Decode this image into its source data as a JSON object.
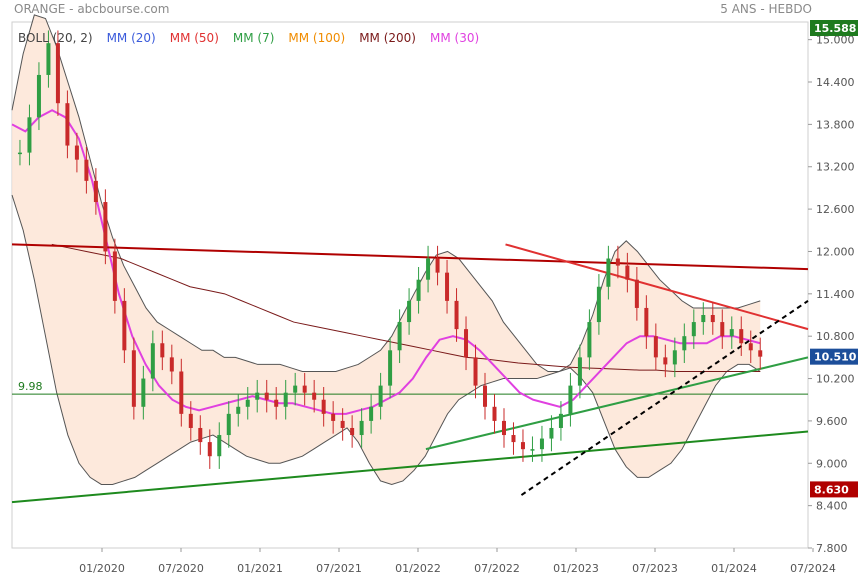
{
  "header": {
    "source": "ORANGE - abcbourse.com",
    "period": "5 ANS - HEBDO"
  },
  "legend": [
    {
      "label": "BOLL (20, 2)",
      "color": "#444444"
    },
    {
      "label": "MM (20)",
      "color": "#3b5bdb"
    },
    {
      "label": "MM (50)",
      "color": "#e03131"
    },
    {
      "label": "MM (7)",
      "color": "#2f9e44"
    },
    {
      "label": "MM (100)",
      "color": "#f08c00"
    },
    {
      "label": "MM (200)",
      "color": "#7a1a1a"
    },
    {
      "label": "MM (30)",
      "color": "#e040e0"
    }
  ],
  "chart_data": {
    "type": "candlestick",
    "x_ticks": [
      "01/2020",
      "07/2020",
      "01/2021",
      "07/2021",
      "01/2022",
      "07/2022",
      "01/2023",
      "07/2023",
      "01/2024",
      "07/2024"
    ],
    "y_ticks": [
      "7.800",
      "8.400",
      "9.000",
      "9.600",
      "10.200",
      "10.800",
      "11.400",
      "12.000",
      "12.600",
      "13.200",
      "13.800",
      "14.400",
      "15.000"
    ],
    "ylim": [
      7.8,
      15.25
    ],
    "top_badge": "15.588",
    "last_price": "10.510",
    "low_marker": "8.630",
    "horizontal_line_label": "9.98",
    "horizontal_line_value": 9.98,
    "close_series": [
      13.4,
      13.9,
      14.5,
      14.95,
      14.1,
      13.5,
      13.3,
      13.0,
      12.7,
      12.0,
      11.3,
      10.6,
      9.8,
      10.2,
      10.7,
      10.5,
      10.3,
      9.7,
      9.5,
      9.3,
      9.1,
      9.4,
      9.7,
      9.8,
      9.9,
      10.0,
      9.9,
      9.8,
      10.0,
      10.1,
      10.0,
      9.9,
      9.7,
      9.6,
      9.5,
      9.4,
      9.6,
      9.8,
      10.1,
      10.6,
      11.0,
      11.3,
      11.6,
      11.9,
      11.7,
      11.3,
      10.9,
      10.5,
      10.1,
      9.8,
      9.6,
      9.4,
      9.3,
      9.2,
      9.2,
      9.35,
      9.5,
      9.7,
      10.1,
      10.5,
      11.0,
      11.5,
      11.9,
      11.8,
      11.6,
      11.2,
      10.8,
      10.5,
      10.4,
      10.6,
      10.8,
      11.0,
      11.1,
      11.0,
      10.8,
      10.9,
      10.7,
      10.6,
      10.51
    ],
    "overlays": {
      "boll_upper": [
        14.0,
        14.8,
        15.35,
        15.3,
        14.9,
        14.4,
        13.9,
        13.3,
        12.7,
        12.2,
        11.8,
        11.5,
        11.2,
        11.0,
        10.9,
        10.8,
        10.7,
        10.6,
        10.6,
        10.5,
        10.5,
        10.45,
        10.4,
        10.4,
        10.4,
        10.35,
        10.3,
        10.3,
        10.3,
        10.3,
        10.35,
        10.4,
        10.5,
        10.6,
        10.8,
        11.1,
        11.4,
        11.7,
        11.95,
        12.0,
        11.9,
        11.7,
        11.5,
        11.3,
        11.0,
        10.8,
        10.6,
        10.4,
        10.3,
        10.3,
        10.4,
        10.7,
        11.1,
        11.6,
        12.0,
        12.15,
        12.0,
        11.8,
        11.6,
        11.45,
        11.3,
        11.2,
        11.2,
        11.2,
        11.2,
        11.2,
        11.25,
        11.3
      ],
      "boll_lower": [
        12.8,
        12.3,
        11.6,
        10.8,
        10.0,
        9.4,
        9.0,
        8.8,
        8.7,
        8.7,
        8.75,
        8.8,
        8.9,
        9.0,
        9.1,
        9.2,
        9.3,
        9.35,
        9.4,
        9.3,
        9.2,
        9.1,
        9.05,
        9.0,
        9.0,
        9.05,
        9.1,
        9.2,
        9.3,
        9.4,
        9.5,
        9.3,
        9.0,
        8.75,
        8.7,
        8.75,
        8.9,
        9.1,
        9.4,
        9.7,
        9.9,
        10.0,
        10.1,
        10.15,
        10.2,
        10.2,
        10.2,
        10.2,
        10.25,
        10.3,
        10.35,
        10.2,
        10.0,
        9.6,
        9.2,
        8.95,
        8.8,
        8.8,
        8.9,
        9.0,
        9.2,
        9.5,
        9.8,
        10.1,
        10.3,
        10.4,
        10.4,
        10.3
      ],
      "ma30": [
        13.8,
        13.7,
        13.9,
        14.0,
        13.9,
        13.6,
        13.0,
        12.2,
        11.4,
        10.8,
        10.4,
        10.1,
        9.9,
        9.8,
        9.75,
        9.8,
        9.85,
        9.9,
        9.95,
        9.9,
        9.85,
        9.85,
        9.8,
        9.75,
        9.7,
        9.7,
        9.75,
        9.8,
        9.9,
        10.0,
        10.2,
        10.5,
        10.75,
        10.8,
        10.75,
        10.6,
        10.4,
        10.2,
        10.0,
        9.9,
        9.85,
        9.8,
        9.9,
        10.1,
        10.3,
        10.5,
        10.7,
        10.8,
        10.8,
        10.75,
        10.7,
        10.7,
        10.7,
        10.8,
        10.8,
        10.75,
        10.7
      ],
      "ma200": [
        12.1,
        12.05,
        12.0,
        11.95,
        11.9,
        11.8,
        11.7,
        11.6,
        11.5,
        11.45,
        11.4,
        11.3,
        11.2,
        11.1,
        11.0,
        10.95,
        10.9,
        10.85,
        10.8,
        10.75,
        10.7,
        10.65,
        10.6,
        10.55,
        10.5,
        10.48,
        10.45,
        10.42,
        10.4,
        10.38,
        10.36,
        10.35,
        10.34,
        10.33,
        10.32,
        10.32,
        10.3,
        10.3,
        10.3,
        10.3,
        10.3,
        10.3
      ],
      "trendlines": [
        {
          "from": [
            0.0,
            12.1
          ],
          "to": [
            1.0,
            11.75
          ],
          "color": "#b00000"
        },
        {
          "from": [
            0.0,
            8.45
          ],
          "to": [
            1.0,
            9.45
          ],
          "color": "#1e8a1e"
        },
        {
          "from": [
            0.52,
            9.2
          ],
          "to": [
            1.0,
            10.5
          ],
          "color": "#2f9e44"
        },
        {
          "from": [
            0.62,
            12.1
          ],
          "to": [
            1.0,
            10.9
          ],
          "color": "#e03131"
        },
        {
          "from": [
            0.64,
            8.55
          ],
          "to": [
            1.0,
            11.3
          ],
          "color": "#000000",
          "dashed": true
        }
      ]
    }
  }
}
